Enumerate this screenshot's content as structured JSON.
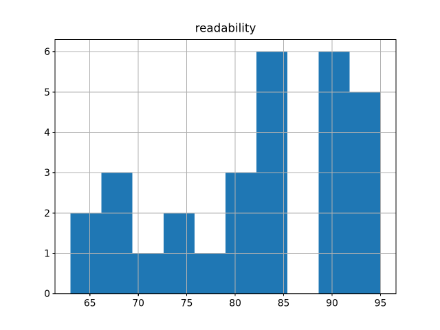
{
  "figure": {
    "title": "readability",
    "background_color": "#ffffff"
  },
  "chart_data": {
    "type": "bar",
    "subtype": "histogram",
    "title": "readability",
    "xlabel": "",
    "ylabel": "",
    "bin_edges": [
      63.0,
      66.2,
      69.4,
      72.6,
      75.8,
      79.0,
      82.2,
      85.4,
      88.6,
      91.8,
      95.0
    ],
    "values": [
      2,
      3,
      1,
      2,
      1,
      3,
      6,
      0,
      6,
      5
    ],
    "xtick_values": [
      65,
      70,
      75,
      80,
      85,
      90,
      95
    ],
    "xtick_labels": [
      "65",
      "70",
      "75",
      "80",
      "85",
      "90",
      "95"
    ],
    "ytick_values": [
      0,
      1,
      2,
      3,
      4,
      5,
      6
    ],
    "ytick_labels": [
      "0",
      "1",
      "2",
      "3",
      "4",
      "5",
      "6"
    ],
    "xlim": [
      61.4,
      96.6
    ],
    "ylim": [
      0,
      6.3
    ],
    "bar_color": "#1f77b4",
    "grid": true,
    "grid_color": "#b0b0b0",
    "axis_color": "#000000",
    "tick_label_color": "#000000",
    "background_color": "#ffffff",
    "legend": "none"
  }
}
